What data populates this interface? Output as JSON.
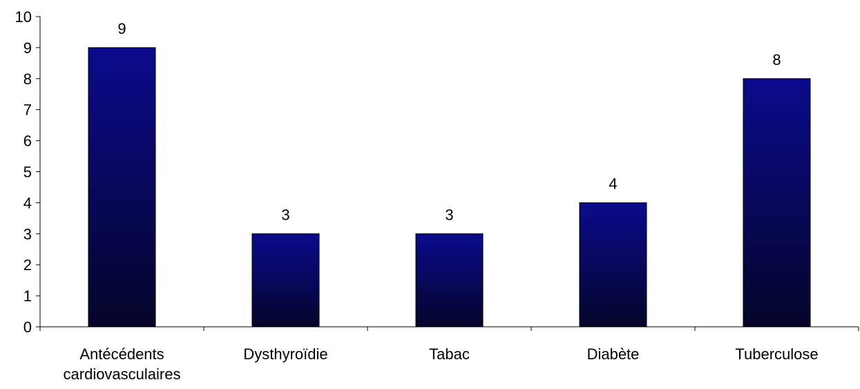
{
  "chart_data": {
    "type": "bar",
    "title": "",
    "xlabel": "",
    "ylabel": "",
    "categories": [
      [
        "Antécédents",
        "cardiovasculaires"
      ],
      [
        "Dysthyroïdie"
      ],
      [
        "Tabac"
      ],
      [
        "Diabète"
      ],
      [
        "Tuberculose"
      ]
    ],
    "values": [
      9,
      3,
      3,
      4,
      8
    ],
    "data_labels": [
      "9",
      "3",
      "3",
      "4",
      "8"
    ],
    "ylim": [
      0,
      10
    ],
    "yticks": [
      "0",
      "1",
      "2",
      "3",
      "4",
      "5",
      "6",
      "7",
      "8",
      "9",
      "10"
    ],
    "grid": false,
    "legend": "none",
    "colors": {
      "bar_top": "#0a0a8c",
      "bar_bottom": "#05052a",
      "bar_stroke": "#000000",
      "axis": "#000000"
    }
  }
}
